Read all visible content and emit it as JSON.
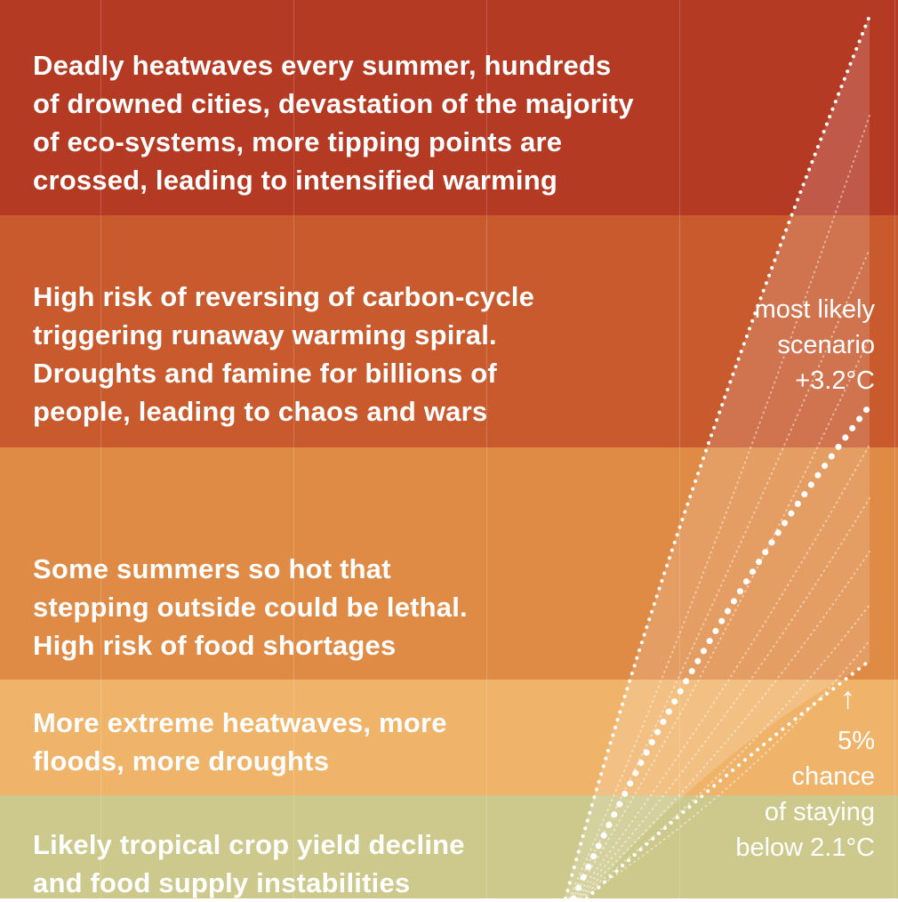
{
  "bands": [
    {
      "id": "band-5",
      "color": "#b43a24",
      "text": "Deadly heatwaves every summer, hundreds\nof drowned cities, devastation of the majority\nof eco-systems, more tipping points are\ncrossed, leading to intensified warming"
    },
    {
      "id": "band-4",
      "color": "#c85a2e",
      "text": "High risk of reversing of carbon-cycle\ntriggering runaway warming spiral.\nDroughts and famine for billions of\npeople, leading to chaos and wars"
    },
    {
      "id": "band-3",
      "color": "#df8b45",
      "text": "Some summers so hot that\nstepping outside could be lethal.\nHigh risk of food shortages"
    },
    {
      "id": "band-2",
      "color": "#efb46a",
      "text": "More extreme heatwaves, more\nfloods, more droughts"
    },
    {
      "id": "band-1",
      "color": "#cdc98c",
      "text": "Likely tropical crop yield decline\nand food supply instabilities"
    }
  ],
  "annotations": {
    "most_likely": "most likely\nscenario\n+3.2°C",
    "low_chance_pct": "5%",
    "low_chance_text": "chance\nof staying\nbelow 2.1°C",
    "arrow": "↑"
  }
}
